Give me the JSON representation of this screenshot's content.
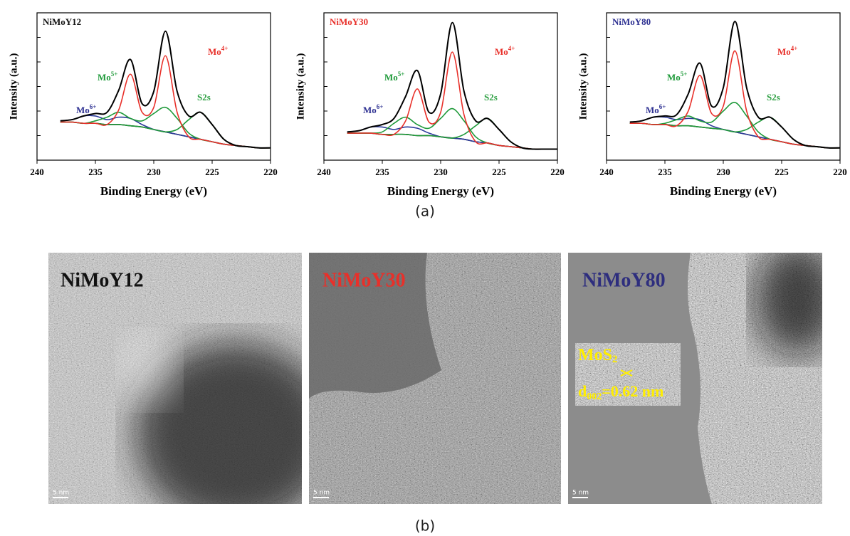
{
  "chart_data": [
    {
      "type": "line",
      "title": "NiMoY12",
      "title_color": "#111111",
      "xlabel": "Binding Energy (eV)",
      "ylabel": "Intensity (a.u.)",
      "xlim": [
        240,
        220
      ],
      "xticks": [
        240,
        235,
        230,
        225,
        220
      ],
      "ylim": [
        0,
        120
      ],
      "yticks": [
        20,
        40,
        60,
        80,
        100
      ],
      "x": [
        238,
        237,
        236,
        235,
        234,
        233,
        232,
        231,
        230,
        229,
        228,
        227,
        226,
        225,
        224,
        223,
        222,
        221,
        220
      ],
      "series": [
        {
          "color": "#111111",
          "values": [
            31,
            31,
            30,
            30,
            29,
            29,
            28,
            27,
            25,
            23,
            21,
            19,
            17,
            15,
            13,
            12,
            11,
            10,
            10
          ]
        },
        {
          "color": "#2b3a9a",
          "values": [
            32,
            33,
            36,
            36,
            33,
            35,
            34,
            29,
            25,
            23,
            21,
            19,
            17,
            15,
            13,
            12,
            11,
            10,
            10
          ]
        },
        {
          "color": "#1f9a3a",
          "values": [
            31,
            31,
            30,
            32,
            35,
            39,
            34,
            32,
            38,
            43,
            34,
            22,
            17,
            15,
            13,
            12,
            11,
            10,
            10
          ]
        },
        {
          "color": "#1f9a3a",
          "values": [
            31,
            31,
            30,
            30,
            29,
            29,
            28,
            27,
            25,
            23,
            25,
            33,
            39,
            29,
            17,
            12,
            11,
            10,
            10
          ]
        },
        {
          "color": "#e8302a",
          "values": [
            31,
            31,
            30,
            30,
            29,
            41,
            70,
            39,
            43,
            85,
            39,
            19,
            17,
            15,
            13,
            12,
            11,
            10,
            10
          ]
        },
        {
          "color": "#000000",
          "values": [
            32,
            33,
            36,
            38,
            39,
            57,
            82,
            46,
            56,
            105,
            56,
            36,
            39,
            29,
            17,
            12,
            11,
            10,
            10
          ]
        }
      ],
      "annotations": [
        {
          "text": "Mo",
          "sup": "6+",
          "color": "#2e3192"
        },
        {
          "text": "Mo",
          "sup": "5+",
          "color": "#1f9a3a"
        },
        {
          "text": "Mo",
          "sup": "4+",
          "color": "#e8302a"
        },
        {
          "text": "S2s",
          "color": "#2ea043"
        }
      ]
    },
    {
      "type": "line",
      "title": "NiMoY30",
      "title_color": "#e8302a",
      "xlabel": "Binding Energy (eV)",
      "ylabel": "Intensity (a.u.)",
      "xlim": [
        240,
        220
      ],
      "xticks": [
        240,
        235,
        230,
        225,
        220
      ],
      "ylim": [
        0,
        120
      ],
      "yticks": [
        20,
        40,
        60,
        80,
        100
      ],
      "x": [
        238,
        237,
        236,
        235,
        234,
        233,
        232,
        231,
        230,
        229,
        228,
        227,
        226,
        225,
        224,
        223,
        222,
        221,
        220
      ],
      "series": [
        {
          "color": "#111111",
          "values": [
            22,
            22,
            22,
            21,
            21,
            21,
            20,
            20,
            19,
            18,
            17,
            15,
            14,
            12,
            11,
            10,
            9,
            9,
            9
          ]
        },
        {
          "color": "#2b3a9a",
          "values": [
            23,
            24,
            27,
            27,
            25,
            27,
            26,
            22,
            19,
            18,
            17,
            15,
            14,
            12,
            11,
            10,
            9,
            9,
            9
          ]
        },
        {
          "color": "#1f9a3a",
          "values": [
            22,
            22,
            22,
            23,
            30,
            35,
            29,
            26,
            34,
            42,
            32,
            19,
            14,
            12,
            11,
            10,
            9,
            9,
            9
          ]
        },
        {
          "color": "#1f9a3a",
          "values": [
            22,
            22,
            22,
            21,
            21,
            21,
            20,
            20,
            19,
            18,
            21,
            28,
            34,
            25,
            15,
            10,
            9,
            9,
            9
          ]
        },
        {
          "color": "#e8302a",
          "values": [
            22,
            22,
            22,
            21,
            21,
            32,
            58,
            31,
            39,
            88,
            37,
            15,
            14,
            12,
            11,
            10,
            9,
            9,
            9
          ]
        },
        {
          "color": "#000000",
          "values": [
            23,
            24,
            27,
            29,
            34,
            52,
            73,
            39,
            54,
            112,
            56,
            32,
            34,
            25,
            15,
            10,
            9,
            9,
            9
          ]
        }
      ],
      "annotations": [
        {
          "text": "Mo",
          "sup": "6+",
          "color": "#2e3192"
        },
        {
          "text": "Mo",
          "sup": "5+",
          "color": "#1f9a3a"
        },
        {
          "text": "Mo",
          "sup": "4+",
          "color": "#e8302a"
        },
        {
          "text": "S2s",
          "color": "#2ea043"
        }
      ]
    },
    {
      "type": "line",
      "title": "NiMoY80",
      "title_color": "#2e3192",
      "xlabel": "Binding Energy (eV)",
      "ylabel": "Intensity (a.u.)",
      "xlim": [
        240,
        220
      ],
      "xticks": [
        240,
        235,
        230,
        225,
        220
      ],
      "ylim": [
        0,
        120
      ],
      "yticks": [
        20,
        40,
        60,
        80,
        100
      ],
      "x": [
        238,
        237,
        236,
        235,
        234,
        233,
        232,
        231,
        230,
        229,
        228,
        227,
        226,
        225,
        224,
        223,
        222,
        221,
        220
      ],
      "series": [
        {
          "color": "#111111",
          "values": [
            30,
            30,
            29,
            29,
            28,
            28,
            27,
            26,
            25,
            23,
            21,
            19,
            17,
            15,
            13,
            12,
            11,
            10,
            10
          ]
        },
        {
          "color": "#2b3a9a",
          "values": [
            31,
            32,
            35,
            35,
            33,
            34,
            33,
            28,
            25,
            23,
            21,
            19,
            17,
            15,
            13,
            12,
            11,
            10,
            10
          ]
        },
        {
          "color": "#1f9a3a",
          "values": [
            30,
            30,
            29,
            30,
            33,
            36,
            32,
            31,
            40,
            47,
            36,
            23,
            17,
            15,
            13,
            12,
            11,
            10,
            10
          ]
        },
        {
          "color": "#1f9a3a",
          "values": [
            30,
            30,
            29,
            29,
            28,
            28,
            27,
            26,
            25,
            23,
            25,
            31,
            35,
            27,
            17,
            12,
            11,
            10,
            10
          ]
        },
        {
          "color": "#e8302a",
          "values": [
            30,
            30,
            29,
            29,
            28,
            40,
            69,
            38,
            44,
            89,
            40,
            19,
            17,
            15,
            13,
            12,
            11,
            10,
            10
          ]
        },
        {
          "color": "#000000",
          "values": [
            31,
            32,
            35,
            36,
            37,
            54,
            79,
            44,
            59,
            113,
            59,
            35,
            35,
            27,
            17,
            12,
            11,
            10,
            10
          ]
        }
      ],
      "annotations": [
        {
          "text": "Mo",
          "sup": "6+",
          "color": "#2e3192"
        },
        {
          "text": "Mo",
          "sup": "5+",
          "color": "#1f9a3a"
        },
        {
          "text": "Mo",
          "sup": "4+",
          "color": "#e8302a"
        },
        {
          "text": "S2s",
          "color": "#2ea043"
        }
      ]
    }
  ],
  "panel_a_label": "(a)",
  "images": {
    "panels": [
      {
        "label": "NiMoY12",
        "color": "#111111",
        "scale": "5 nm"
      },
      {
        "label": "NiMoY30",
        "color": "#e8302a",
        "scale": "5 nm"
      },
      {
        "label": "NiMoY80",
        "color": "#2e2e7e",
        "scale": "5 nm"
      }
    ],
    "inset": {
      "title": "MoS",
      "title_sub": "2",
      "spacing": "d",
      "spacing_sub": "002",
      "spacing_rest": "=0.62 nm"
    },
    "caption": "(b)"
  }
}
